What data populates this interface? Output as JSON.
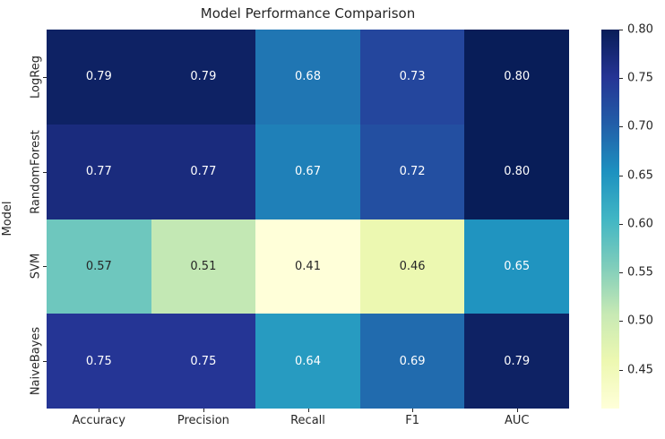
{
  "chart_data": {
    "type": "heatmap",
    "title": "Model Performance Comparison",
    "xlabel": "",
    "ylabel": "Model",
    "columns": [
      "Accuracy",
      "Precision",
      "Recall",
      "F1",
      "AUC"
    ],
    "rows": [
      "LogReg",
      "RandomForest",
      "SVM",
      "NaiveBayes"
    ],
    "values": [
      [
        0.79,
        0.79,
        0.68,
        0.73,
        0.8
      ],
      [
        0.77,
        0.77,
        0.67,
        0.72,
        0.8
      ],
      [
        0.57,
        0.51,
        0.41,
        0.46,
        0.65
      ],
      [
        0.75,
        0.75,
        0.64,
        0.69,
        0.79
      ]
    ],
    "annotation_decimals": 2,
    "vmin": 0.41,
    "vmax": 0.8,
    "colormap": "YlGnBu",
    "colormap_stops": [
      "#ffffd9",
      "#edf8b1",
      "#c7e9b4",
      "#7fcdbb",
      "#41b6c4",
      "#1d91c0",
      "#225ea8",
      "#253494",
      "#081d58"
    ],
    "colorbar_ticks": [
      0.8,
      0.75,
      0.7,
      0.65,
      0.6,
      0.55,
      0.5,
      0.45
    ],
    "annotation_light_color": "#ffffff",
    "annotation_dark_color": "#262626",
    "background": "#ffffff",
    "grid": false,
    "legend_position": "right-colorbar"
  }
}
